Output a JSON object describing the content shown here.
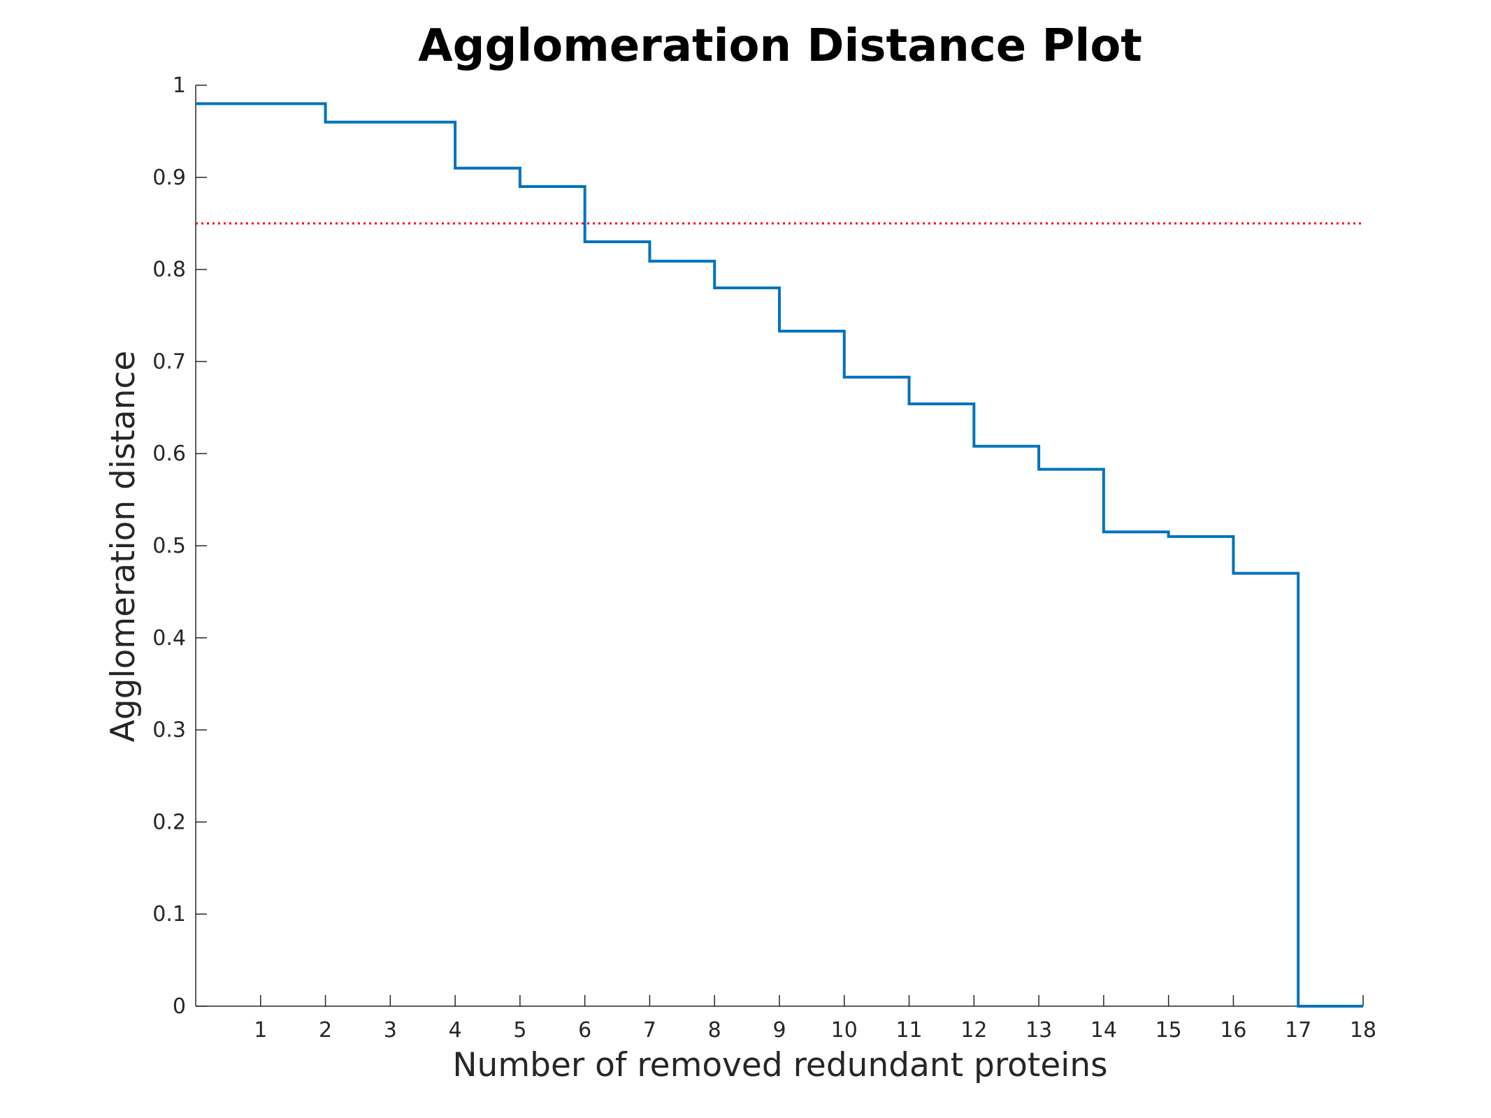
{
  "chart_data": {
    "type": "line",
    "style": "step",
    "title": "Agglomeration Distance Plot",
    "xlabel": "Number of removed redundant proteins",
    "ylabel": "Agglomeration distance",
    "xlim": [
      0,
      18
    ],
    "ylim": [
      0,
      1
    ],
    "xticks": [
      1,
      2,
      3,
      4,
      5,
      6,
      7,
      8,
      9,
      10,
      11,
      12,
      13,
      14,
      15,
      16,
      17,
      18
    ],
    "xtick_labels": [
      "1",
      "2",
      "3",
      "4",
      "5",
      "6",
      "7",
      "8",
      "9",
      "10",
      "11",
      "12",
      "13",
      "14",
      "15",
      "16",
      "17",
      "18"
    ],
    "yticks": [
      0,
      0.1,
      0.2,
      0.3,
      0.4,
      0.5,
      0.6,
      0.7,
      0.8,
      0.9,
      1
    ],
    "ytick_labels": [
      "0",
      "0.1",
      "0.2",
      "0.3",
      "0.4",
      "0.5",
      "0.6",
      "0.7",
      "0.8",
      "0.9",
      "1"
    ],
    "grid": false,
    "series": [
      {
        "color": "#0072BD",
        "x": [
          0,
          1,
          2,
          3,
          4,
          5,
          6,
          7,
          8,
          9,
          10,
          11,
          12,
          13,
          14,
          15,
          16,
          17,
          18
        ],
        "values": [
          0.98,
          0.98,
          0.96,
          0.96,
          0.91,
          0.89,
          0.83,
          0.809,
          0.78,
          0.733,
          0.683,
          0.654,
          0.608,
          0.583,
          0.515,
          0.51,
          0.47,
          0,
          0
        ]
      }
    ],
    "reference_lines": [
      {
        "orientation": "horizontal",
        "y": 0.85,
        "color": "#FF0000",
        "style": "dotted"
      }
    ]
  }
}
